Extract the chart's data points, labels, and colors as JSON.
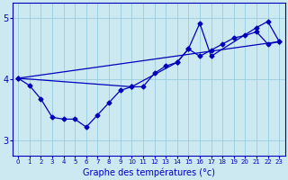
{
  "xlabel": "Graphe des températures (°c)",
  "xlim": [
    -0.5,
    23.5
  ],
  "ylim": [
    2.75,
    5.25
  ],
  "yticks": [
    3,
    4,
    5
  ],
  "xticks": [
    0,
    1,
    2,
    3,
    4,
    5,
    6,
    7,
    8,
    9,
    10,
    11,
    12,
    13,
    14,
    15,
    16,
    17,
    18,
    19,
    20,
    21,
    22,
    23
  ],
  "bg_color": "#cce8f0",
  "line_color": "#0000bb",
  "grid_color": "#99cce0",
  "series1_x": [
    0,
    1,
    2,
    3,
    4,
    5,
    6,
    7,
    8,
    9,
    10,
    11,
    12,
    13,
    14,
    15,
    16,
    17,
    18,
    19,
    20,
    21,
    22,
    23
  ],
  "series1_y": [
    4.02,
    3.9,
    3.68,
    3.38,
    3.35,
    3.35,
    3.22,
    3.42,
    3.62,
    3.82,
    3.88,
    3.88,
    4.1,
    4.22,
    4.28,
    4.5,
    4.38,
    4.48,
    4.58,
    4.68,
    4.72,
    4.78,
    4.58,
    4.62
  ],
  "series2_x": [
    0,
    10,
    14,
    15,
    16,
    17,
    21,
    22,
    23
  ],
  "series2_y": [
    4.02,
    3.88,
    4.28,
    4.5,
    4.92,
    4.38,
    4.85,
    4.95,
    4.62
  ],
  "series3_x": [
    0,
    23
  ],
  "series3_y": [
    4.02,
    4.62
  ],
  "marker_size": 2.5,
  "lw": 0.9
}
